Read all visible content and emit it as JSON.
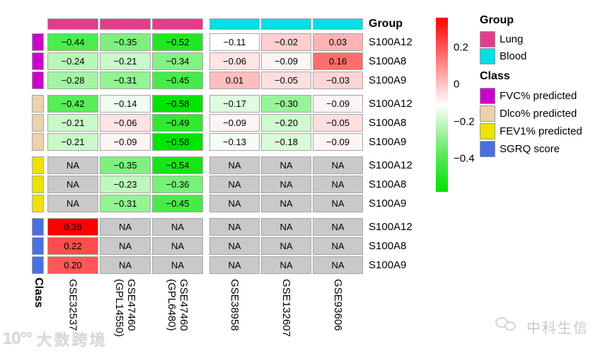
{
  "heatmap": {
    "group_label": "Group",
    "class_label": "Class",
    "genes": [
      "S100A12",
      "S100A8",
      "S100A9"
    ],
    "groups": [
      {
        "name": "Lung",
        "color": "#E23D8C"
      },
      {
        "name": "Blood",
        "color": "#00E0E5"
      }
    ],
    "classes": [
      {
        "name": "FVC% predicted",
        "color": "#CB00CE"
      },
      {
        "name": "Dlco% predicted",
        "color": "#EBD2AB"
      },
      {
        "name": "FEV1% predicted",
        "color": "#EEE104"
      },
      {
        "name": "SGRQ score",
        "color": "#4A6FE0"
      }
    ],
    "na_color": "#C9C9C9",
    "columns": [
      {
        "label_lines": [
          "GSE32537"
        ],
        "group": "Lung"
      },
      {
        "label_lines": [
          "GSE47460",
          "(GPL14550)"
        ],
        "group": "Lung"
      },
      {
        "label_lines": [
          "GSE47460",
          "(GPL6480)"
        ],
        "group": "Lung"
      },
      {
        "label_lines": [
          "GSE38958"
        ],
        "group": "Blood"
      },
      {
        "label_lines": [
          "GSE132607"
        ],
        "group": "Blood"
      },
      {
        "label_lines": [
          "GSE93606"
        ],
        "group": "Blood"
      }
    ]
  },
  "legend": {
    "group_title": "Group",
    "class_title": "Class",
    "colorbar_ticks": [
      "0.2",
      "0",
      "−0.2",
      "−0.4"
    ]
  },
  "watermarks": {
    "bottom_left_logo": "10°°",
    "bottom_left": "大数跨境",
    "bottom_right": "中科生信"
  },
  "chart_data": {
    "type": "heatmap",
    "columns": [
      "GSE32537",
      "GSE47460 (GPL14550)",
      "GSE47460 (GPL6480)",
      "GSE38958",
      "GSE132607",
      "GSE93606"
    ],
    "column_groups": [
      "Lung",
      "Lung",
      "Lung",
      "Blood",
      "Blood",
      "Blood"
    ],
    "na_label": "NA",
    "rows": [
      {
        "class": "FVC% predicted",
        "gene": "S100A12",
        "values": [
          -0.44,
          -0.35,
          -0.52,
          -0.11,
          -0.02,
          0.03
        ]
      },
      {
        "class": "FVC% predicted",
        "gene": "S100A8",
        "values": [
          -0.24,
          -0.21,
          -0.34,
          -0.06,
          -0.09,
          0.16
        ]
      },
      {
        "class": "FVC% predicted",
        "gene": "S100A9",
        "values": [
          -0.28,
          -0.31,
          -0.45,
          0.01,
          -0.05,
          -0.03
        ]
      },
      {
        "class": "Dlco% predicted",
        "gene": "S100A12",
        "values": [
          -0.42,
          -0.14,
          -0.58,
          -0.17,
          -0.3,
          -0.09
        ]
      },
      {
        "class": "Dlco% predicted",
        "gene": "S100A8",
        "values": [
          -0.21,
          -0.06,
          -0.49,
          -0.09,
          -0.2,
          -0.05
        ]
      },
      {
        "class": "Dlco% predicted",
        "gene": "S100A9",
        "values": [
          -0.21,
          -0.09,
          -0.58,
          -0.13,
          -0.18,
          -0.09
        ]
      },
      {
        "class": "FEV1% predicted",
        "gene": "S100A12",
        "values": [
          null,
          -0.35,
          -0.54,
          null,
          null,
          null
        ]
      },
      {
        "class": "FEV1% predicted",
        "gene": "S100A8",
        "values": [
          null,
          -0.23,
          -0.36,
          null,
          null,
          null
        ]
      },
      {
        "class": "FEV1% predicted",
        "gene": "S100A9",
        "values": [
          null,
          -0.31,
          -0.45,
          null,
          null,
          null
        ]
      },
      {
        "class": "SGRQ score",
        "gene": "S100A12",
        "values": [
          0.36,
          null,
          null,
          null,
          null,
          null
        ]
      },
      {
        "class": "SGRQ score",
        "gene": "S100A8",
        "values": [
          0.22,
          null,
          null,
          null,
          null,
          null
        ]
      },
      {
        "class": "SGRQ score",
        "gene": "S100A9",
        "values": [
          0.2,
          null,
          null,
          null,
          null,
          null
        ]
      }
    ],
    "colorbar": {
      "tick_values": [
        0.2,
        0,
        -0.2,
        -0.4
      ],
      "max": 0.36,
      "min": -0.58,
      "white_point": -0.11,
      "colors": {
        "positive": "#FF0000",
        "zero": "#FFFFFF",
        "negative": "#00E400"
      },
      "legend_position": "right"
    }
  }
}
